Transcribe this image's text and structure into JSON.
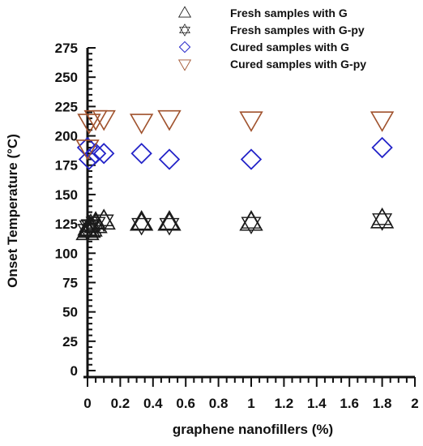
{
  "chart_data": {
    "type": "scatter",
    "xlabel": "graphene nanofillers (%)",
    "ylabel": "Onset Temperature (°C)",
    "xlim": [
      0,
      2
    ],
    "ylim": [
      0,
      275
    ],
    "x_ticks": [
      "0",
      "0.2",
      "0.4",
      "0.6",
      "0.8",
      "1",
      "1.2",
      "1.4",
      "1.6",
      "1.8",
      "2"
    ],
    "y_ticks": [
      "0",
      "25",
      "50",
      "75",
      "100",
      "125",
      "150",
      "175",
      "200",
      "225",
      "250",
      "275"
    ],
    "legend_position": "top-right",
    "series": [
      {
        "name": "Fresh samples with G",
        "marker": "triangle-up",
        "color": "#1a1a1a",
        "x": [
          0,
          0.01,
          0.02,
          0.05,
          0.1,
          0.33,
          0.5,
          1.0,
          1.8
        ],
        "y": [
          118,
          120,
          121,
          124,
          127,
          126,
          126,
          126,
          128
        ]
      },
      {
        "name": "Fresh samples with G-py",
        "marker": "star-of-david",
        "color": "#1a1a1a",
        "x": [
          0,
          0.01,
          0.02,
          0.05,
          0.1,
          0.33,
          0.5,
          1.0,
          1.8
        ],
        "y": [
          120,
          123,
          124,
          126,
          128,
          125,
          125,
          126,
          129
        ]
      },
      {
        "name": "Cured samples with G",
        "marker": "diamond",
        "color": "#2323c8",
        "x": [
          0,
          0.01,
          0.05,
          0.1,
          0.33,
          0.5,
          1.0,
          1.8
        ],
        "y": [
          190,
          180,
          185,
          185,
          185,
          180,
          180,
          190
        ]
      },
      {
        "name": "Cured samples with G-py",
        "marker": "triangle-down",
        "color": "#a0522d",
        "x": [
          0,
          0.01,
          0.05,
          0.1,
          0.33,
          0.5,
          1.0,
          1.8
        ],
        "y": [
          190,
          212,
          215,
          215,
          212,
          215,
          214,
          214
        ]
      }
    ]
  }
}
